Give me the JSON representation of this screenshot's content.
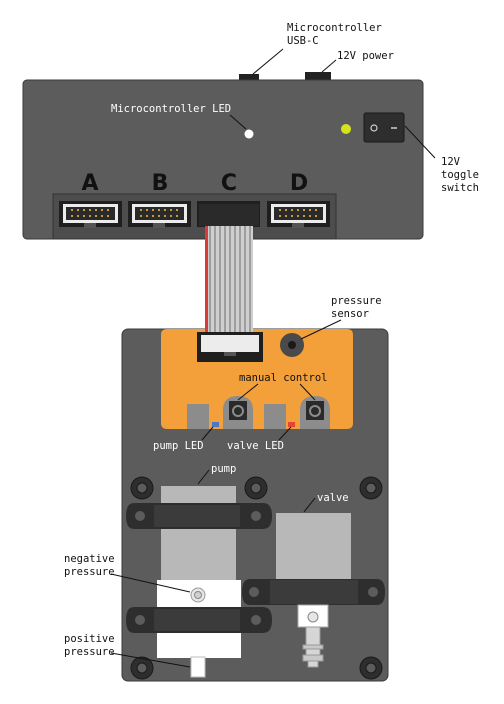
{
  "labels": {
    "usb": [
      "Microcontroller",
      "USB-C"
    ],
    "power": "12V power",
    "mc_led": "Microcontroller LED",
    "toggle": [
      "12V",
      "toggle",
      "switch"
    ],
    "ports": [
      "A",
      "B",
      "C",
      "D"
    ],
    "pressure_sensor": [
      "pressure",
      "sensor"
    ],
    "manual_control": "manual control",
    "pump_led": "pump LED",
    "valve_led": "valve LED",
    "pump": "pump",
    "valve": "valve",
    "negative_pressure": [
      "negative",
      "pressure"
    ],
    "positive_pressure": [
      "positive",
      "pressure"
    ]
  },
  "colors": {
    "housing": "#5c5c5c",
    "board": "#f4a03a",
    "indicator_led_yellow": "#d6e21a",
    "pump_led": "#4a78c8",
    "valve_led": "#e8432f",
    "ribbon_stripe": "#d93a3a"
  }
}
